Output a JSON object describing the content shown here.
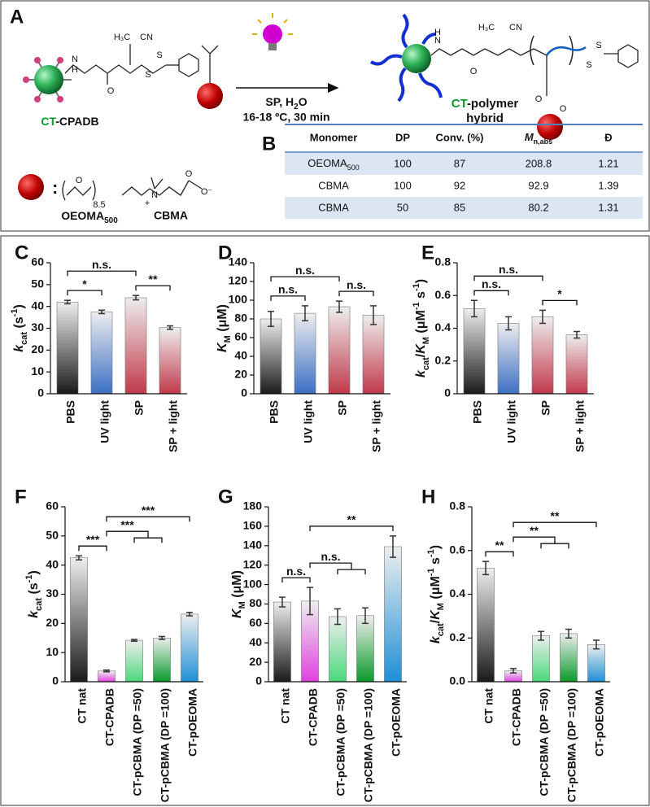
{
  "panel_labels": [
    "A",
    "B",
    "C",
    "D",
    "E",
    "F",
    "G",
    "H"
  ],
  "scheme": {
    "reactant": {
      "prefix": "CT",
      "rest": "-CPADB"
    },
    "conditions": {
      "line1a": "SP, H",
      "line1sub": "2",
      "line1b": "O",
      "line2": "16-18 ºC, 30 min"
    },
    "product": {
      "prefix": "CT",
      "rest": "-polymer",
      "line2": "hybrid"
    },
    "colon": ":",
    "monomer1": {
      "text": "OEOMA",
      "sub": "500"
    },
    "monomer2": "CBMA",
    "atoms": [
      "N",
      "H",
      "O",
      "H₃C",
      "CN",
      "S",
      "S",
      "N",
      "H",
      "O",
      "H₃C",
      "CN",
      "S",
      "S",
      "O",
      "O",
      "O",
      "8.5",
      "N",
      "+",
      "O",
      "O⁻"
    ]
  },
  "table": {
    "headers": [
      "Monomer",
      "DP",
      "Conv. (%)",
      {
        "text": "M",
        "sub": "n,abs"
      },
      "Đ"
    ],
    "rows": [
      [
        {
          "text": "OEOMA",
          "sub": "500"
        },
        "100",
        "87",
        "208.8",
        "1.21"
      ],
      [
        "CBMA",
        "100",
        "92",
        "92.9",
        "1.39"
      ],
      [
        "CBMA",
        "50",
        "85",
        "80.2",
        "1.31"
      ]
    ]
  },
  "chart_data": [
    {
      "type": "bar",
      "ylabel": [
        "k",
        "cat",
        " (s",
        "-1",
        ")"
      ],
      "ylabel_format": [
        "i",
        "sub",
        "n",
        "sup",
        "n"
      ],
      "categories": [
        "PBS",
        "UV light",
        "SP",
        "SP + light"
      ],
      "values": [
        42,
        37.5,
        44,
        30.3
      ],
      "errors": [
        0.8,
        0.8,
        1,
        0.8
      ],
      "colors": [
        "#1a1a1a",
        "#3c6fc4",
        "#c0394a",
        "#c0394a"
      ],
      "ylim": [
        0,
        60
      ],
      "yticks": [
        0,
        10,
        20,
        30,
        40,
        50,
        60
      ],
      "annotations": [
        {
          "text": "*",
          "from": 0,
          "to": [
            1
          ]
        },
        {
          "text": "**",
          "from": 2,
          "to": [
            3
          ]
        },
        {
          "text": "n.s.",
          "from": 0,
          "to": [
            2
          ]
        }
      ]
    },
    {
      "type": "bar",
      "ylabel": [
        "K",
        "M",
        " (μM)"
      ],
      "ylabel_format": [
        "i",
        "sub",
        "n"
      ],
      "categories": [
        "PBS",
        "UV light",
        "SP",
        "SP + light"
      ],
      "values": [
        80,
        86,
        93,
        84
      ],
      "errors": [
        8,
        8,
        6,
        10
      ],
      "colors": [
        "#1a1a1a",
        "#3c6fc4",
        "#c0394a",
        "#c0394a"
      ],
      "ylim": [
        0,
        140
      ],
      "yticks": [
        0,
        20,
        40,
        60,
        80,
        100,
        120,
        140
      ],
      "annotations": [
        {
          "text": "n.s.",
          "from": 0,
          "to": [
            1
          ]
        },
        {
          "text": "n.s.",
          "from": 2,
          "to": [
            3
          ]
        },
        {
          "text": "n.s.",
          "from": 0,
          "to": [
            2
          ]
        }
      ]
    },
    {
      "type": "bar",
      "ylabel": [
        "k",
        "cat",
        "/",
        "K",
        "M",
        " (μM",
        "-1",
        " s",
        "-1",
        ")"
      ],
      "ylabel_format": [
        "i",
        "sub",
        "n",
        "i",
        "sub",
        "n",
        "sup",
        "n",
        "sup",
        "n"
      ],
      "categories": [
        "PBS",
        "UV light",
        "SP",
        "SP + light"
      ],
      "values": [
        0.52,
        0.43,
        0.47,
        0.36
      ],
      "errors": [
        0.05,
        0.04,
        0.04,
        0.02
      ],
      "colors": [
        "#1a1a1a",
        "#3c6fc4",
        "#c0394a",
        "#c0394a"
      ],
      "ylim": [
        0,
        0.8
      ],
      "yticks": [
        0,
        0.2,
        0.4,
        0.6,
        0.8
      ],
      "annotations": [
        {
          "text": "n.s.",
          "from": 0,
          "to": [
            1
          ]
        },
        {
          "text": "*",
          "from": 2,
          "to": [
            3
          ]
        },
        {
          "text": "n.s.",
          "from": 0,
          "to": [
            2
          ]
        }
      ]
    },
    {
      "type": "bar",
      "ylabel": [
        "k",
        "cat",
        " (s",
        "-1",
        ")"
      ],
      "ylabel_format": [
        "i",
        "sub",
        "n",
        "sup",
        "n"
      ],
      "categories": [
        "CT nat",
        "CT-CPADB",
        "CT-pCBMA (DP =50)",
        "CT-pCBMA (DP =100)",
        "CT-pOEOMA"
      ],
      "values": [
        42.5,
        3.7,
        14.2,
        15,
        23.2
      ],
      "errors": [
        0.7,
        0.3,
        0.3,
        0.5,
        0.6
      ],
      "colors": [
        "#1a1a1a",
        "#e040e0",
        "#49d97a",
        "#0a9a2a",
        "#1f8fd6"
      ],
      "ylim": [
        0,
        60
      ],
      "yticks": [
        0,
        10,
        20,
        30,
        40,
        50,
        60
      ],
      "annotations": [
        {
          "text": "***",
          "from": 0,
          "to": [
            1
          ]
        },
        {
          "text": "***",
          "from": 1,
          "to": [
            2,
            3
          ]
        },
        {
          "text": "***",
          "from": 1,
          "to": [
            4
          ]
        }
      ]
    },
    {
      "type": "bar",
      "ylabel": [
        "K",
        "M",
        " (μM)"
      ],
      "ylabel_format": [
        "i",
        "sub",
        "n"
      ],
      "categories": [
        "CT nat",
        "CT-CPADB",
        "CT-pCBMA (DP =50)",
        "CT-pCBMA (DP =100)",
        "CT-pOEOMA"
      ],
      "values": [
        82,
        83,
        67,
        68,
        139
      ],
      "errors": [
        5,
        14,
        8,
        8,
        11
      ],
      "colors": [
        "#1a1a1a",
        "#e040e0",
        "#49d97a",
        "#0a9a2a",
        "#1f8fd6"
      ],
      "ylim": [
        0,
        180
      ],
      "yticks": [
        0,
        20,
        40,
        60,
        80,
        100,
        120,
        140,
        160,
        180
      ],
      "annotations": [
        {
          "text": "n.s.",
          "from": 0,
          "to": [
            1
          ]
        },
        {
          "text": "n.s.",
          "from": 1,
          "to": [
            2,
            3
          ]
        },
        {
          "text": "**",
          "from": 1,
          "to": [
            4
          ]
        }
      ]
    },
    {
      "type": "bar",
      "ylabel": [
        "k",
        "cat",
        "/",
        "K",
        "M",
        " (μM",
        "-1",
        " s",
        "-1",
        ")"
      ],
      "ylabel_format": [
        "i",
        "sub",
        "n",
        "i",
        "sub",
        "n",
        "sup",
        "n",
        "sup",
        "n"
      ],
      "categories": [
        "CT nat",
        "CT-CPADB",
        "CT-pCBMA (DP =50)",
        "CT-pCBMA (DP =100)",
        "CT-pOEOMA"
      ],
      "values": [
        0.52,
        0.05,
        0.21,
        0.22,
        0.17
      ],
      "errors": [
        0.03,
        0.01,
        0.02,
        0.02,
        0.02
      ],
      "colors": [
        "#1a1a1a",
        "#e040e0",
        "#49d97a",
        "#0a9a2a",
        "#1f8fd6"
      ],
      "ylim": [
        0,
        0.8
      ],
      "yticks": [
        {
          "value": 0,
          "label": "0.0"
        },
        0.2,
        0.4,
        0.6,
        0.8
      ],
      "annotations": [
        {
          "text": "**",
          "from": 0,
          "to": [
            1
          ]
        },
        {
          "text": "**",
          "from": 1,
          "to": [
            2,
            3
          ]
        },
        {
          "text": "**",
          "from": 1,
          "to": [
            4
          ]
        }
      ]
    }
  ]
}
